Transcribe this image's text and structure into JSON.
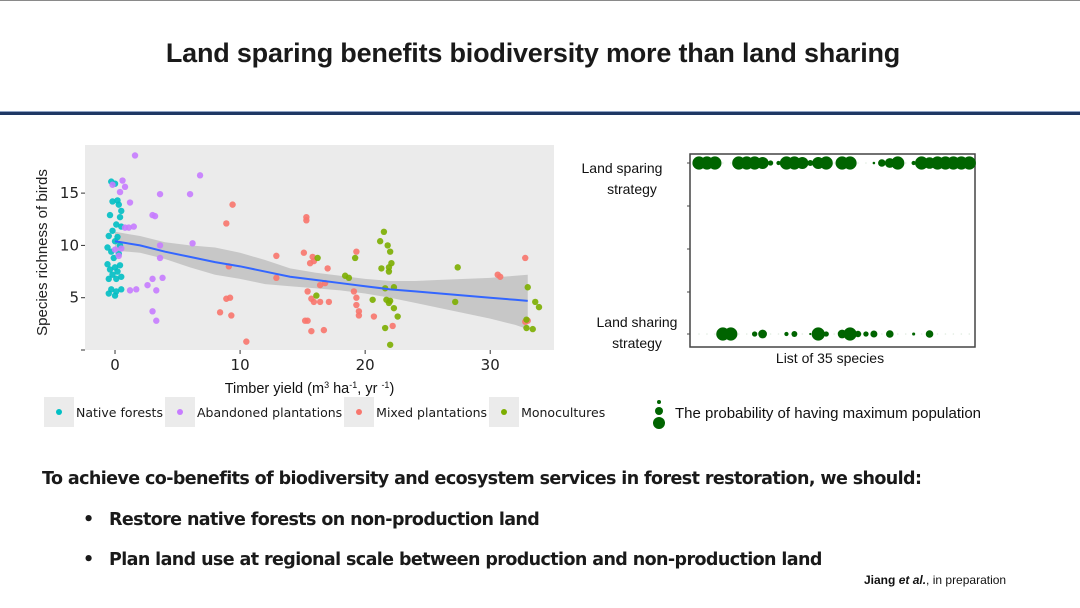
{
  "slide": {
    "title": "Land sparing benefits biodiversity more than land sharing",
    "conclusion": "To achieve co-benefits of biodiversity and ecosystem services in forest restoration, we should:",
    "bullets": [
      {
        "symbol": "•",
        "text": "Restore native forests on non-production land"
      },
      {
        "symbol": "•",
        "text": "Plan land use at regional scale between production and non-production land"
      }
    ],
    "citation": {
      "author": "Jiang",
      "etal": "et al.",
      "rest": ", in preparation"
    },
    "colors": {
      "title_rule": "#1f3864",
      "native": "#00BFC4",
      "abandoned": "#C77CFF",
      "mixed": "#F8766D",
      "mono": "#7CAE00",
      "trend": "#3366FF",
      "dot_green": "#006400"
    }
  },
  "chart_data": [
    {
      "type": "scatter",
      "title": "",
      "xlabel": "Timber yield (m³ ha⁻¹, yr ⁻¹)",
      "xlabel_parts": {
        "a": "Timber yield (m",
        "sup1": "3",
        "b": " ha",
        "sup2": "-1",
        "c": ", yr ",
        "sup3": "-1",
        "d": ")"
      },
      "ylabel": "Species richness of birds",
      "xlim": [
        -2.4,
        35.1
      ],
      "ylim": [
        0,
        19.6
      ],
      "xticks": [
        0,
        10,
        20,
        30
      ],
      "yticks": [
        0,
        5,
        10,
        15
      ],
      "ytick_labels": [
        "",
        "5",
        "10",
        "15"
      ],
      "grid": false,
      "background": "#EBEBEB",
      "legend_position": "bottom",
      "series": [
        {
          "name": "Native forests",
          "key": "native",
          "color": "#00BFC4",
          "points": [
            [
              -0.3,
              16.1
            ],
            [
              0,
              15.9
            ],
            [
              -0.2,
              14.2
            ],
            [
              0.2,
              14.3
            ],
            [
              0.3,
              13.9
            ],
            [
              0.5,
              13.3
            ],
            [
              -0.4,
              12.9
            ],
            [
              0.4,
              12.7
            ],
            [
              0.1,
              12.0
            ],
            [
              0.5,
              11.8
            ],
            [
              -0.5,
              10.9
            ],
            [
              0.2,
              10.8
            ],
            [
              0,
              10.4
            ],
            [
              -0.6,
              9.8
            ],
            [
              -0.3,
              9.4
            ],
            [
              0.3,
              9.2
            ],
            [
              -0.1,
              8.8
            ],
            [
              -0.6,
              8.2
            ],
            [
              0.4,
              8.1
            ],
            [
              0,
              7.9
            ],
            [
              -0.4,
              7.7
            ],
            [
              0.2,
              7.5
            ],
            [
              -0.2,
              7.2
            ],
            [
              0.5,
              7.0
            ],
            [
              -0.5,
              6.8
            ],
            [
              0.1,
              6.8
            ],
            [
              -0.3,
              5.8
            ],
            [
              0.5,
              5.8
            ],
            [
              0.1,
              5.6
            ],
            [
              -0.5,
              5.4
            ],
            [
              0,
              5.2
            ],
            [
              -0.2,
              11.4
            ],
            [
              0.4,
              10.0
            ]
          ]
        },
        {
          "name": "Abandoned plantations",
          "key": "abandoned",
          "color": "#C77CFF",
          "points": [
            [
              1.6,
              18.6
            ],
            [
              0.6,
              16.2
            ],
            [
              -0.2,
              15.8
            ],
            [
              0.8,
              15.6
            ],
            [
              0.4,
              15.1
            ],
            [
              1.2,
              14.1
            ],
            [
              3.6,
              14.9
            ],
            [
              6,
              14.9
            ],
            [
              6.8,
              16.7
            ],
            [
              3,
              12.9
            ],
            [
              3.2,
              12.8
            ],
            [
              0.8,
              11.7
            ],
            [
              1.1,
              11.7
            ],
            [
              1.5,
              11.8
            ],
            [
              0.5,
              9.7
            ],
            [
              0.3,
              9.0
            ],
            [
              3.6,
              10.0
            ],
            [
              3.6,
              8.8
            ],
            [
              6.2,
              10.2
            ],
            [
              2.6,
              6.2
            ],
            [
              3.3,
              5.7
            ],
            [
              1.2,
              5.7
            ],
            [
              1.7,
              5.8
            ],
            [
              3,
              6.8
            ],
            [
              3.8,
              6.9
            ],
            [
              3,
              3.7
            ],
            [
              3.3,
              2.8
            ],
            [
              0,
              9.6
            ]
          ]
        },
        {
          "name": "Mixed plantations",
          "key": "mixed",
          "color": "#F8766D",
          "points": [
            [
              9.4,
              13.9
            ],
            [
              8.9,
              12.1
            ],
            [
              9.1,
              8.0
            ],
            [
              8.9,
              4.9
            ],
            [
              9.2,
              5.0
            ],
            [
              8.4,
              3.6
            ],
            [
              9.3,
              3.3
            ],
            [
              10.5,
              0.8
            ],
            [
              12.9,
              9.0
            ],
            [
              12.9,
              6.9
            ],
            [
              15.3,
              12.7
            ],
            [
              15.3,
              12.4
            ],
            [
              15.1,
              9.3
            ],
            [
              15.8,
              8.9
            ],
            [
              15.6,
              8.3
            ],
            [
              15.9,
              8.5
            ],
            [
              17,
              7.8
            ],
            [
              15.4,
              5.6
            ],
            [
              15.7,
              4.9
            ],
            [
              15.9,
              4.6
            ],
            [
              16.4,
              4.6
            ],
            [
              17.1,
              4.6
            ],
            [
              15.2,
              2.8
            ],
            [
              15.4,
              2.8
            ],
            [
              15.7,
              1.8
            ],
            [
              16.7,
              1.9
            ],
            [
              16.4,
              6.2
            ],
            [
              16.8,
              6.4
            ],
            [
              19.3,
              9.4
            ],
            [
              19.1,
              5.6
            ],
            [
              19.3,
              5.0
            ],
            [
              19.3,
              4.3
            ],
            [
              19.5,
              3.7
            ],
            [
              19.5,
              3.3
            ],
            [
              20.7,
              3.2
            ],
            [
              22.2,
              2.3
            ],
            [
              30.6,
              7.2
            ],
            [
              30.8,
              7.0
            ],
            [
              32.8,
              8.8
            ],
            [
              32.8,
              2.7
            ],
            [
              33,
              2.8
            ]
          ]
        },
        {
          "name": "Monocultures",
          "key": "mono",
          "color": "#7CAE00",
          "points": [
            [
              16.2,
              8.8
            ],
            [
              16.1,
              5.2
            ],
            [
              18.4,
              7.1
            ],
            [
              18.7,
              6.9
            ],
            [
              19.2,
              8.8
            ],
            [
              20.6,
              4.8
            ],
            [
              21.2,
              10.4
            ],
            [
              21.5,
              11.3
            ],
            [
              21.8,
              10.0
            ],
            [
              22,
              9.4
            ],
            [
              21.3,
              7.8
            ],
            [
              21.9,
              7.9
            ],
            [
              22.1,
              8.3
            ],
            [
              21.9,
              7.5
            ],
            [
              21.6,
              5.9
            ],
            [
              22.3,
              6.0
            ],
            [
              21.7,
              4.8
            ],
            [
              21.9,
              4.5
            ],
            [
              22,
              4.7
            ],
            [
              22.3,
              4.0
            ],
            [
              22.6,
              3.2
            ],
            [
              21.6,
              2.1
            ],
            [
              22,
              0.5
            ],
            [
              27.2,
              4.6
            ],
            [
              27.4,
              7.9
            ],
            [
              33,
              6.0
            ],
            [
              33.6,
              4.6
            ],
            [
              33.9,
              4.1
            ],
            [
              32.9,
              2.9
            ],
            [
              32.9,
              2.1
            ],
            [
              33.4,
              2.0
            ]
          ]
        }
      ],
      "trend": {
        "name": "LOESS smooth",
        "color": "#3366FF",
        "x": [
          0,
          2,
          4,
          6,
          8,
          10,
          12,
          14,
          16,
          18,
          20,
          22,
          24,
          26,
          28,
          30,
          32,
          33
        ],
        "y": [
          10.4,
          10.0,
          9.4,
          8.9,
          8.4,
          8.0,
          7.5,
          7.0,
          6.7,
          6.4,
          6.1,
          5.8,
          5.6,
          5.4,
          5.2,
          5.0,
          4.8,
          4.7
        ],
        "ci_lower": [
          9.5,
          9.3,
          8.7,
          7.9,
          7.2,
          6.8,
          6.3,
          6.1,
          5.9,
          5.7,
          5.4,
          5.0,
          4.5,
          4.0,
          3.5,
          3.0,
          2.4,
          2.0
        ],
        "ci_upper": [
          11.3,
          10.9,
          10.3,
          10.0,
          9.8,
          9.3,
          8.6,
          7.8,
          7.4,
          7.1,
          6.8,
          6.6,
          6.6,
          6.7,
          6.8,
          6.9,
          7.1,
          7.2
        ]
      }
    },
    {
      "type": "scatter",
      "title": "",
      "xlabel": "List of 35 species",
      "ylabel": "",
      "categories_y": [
        "Land sparing strategy",
        "Land sharing strategy"
      ],
      "ylabels": [
        [
          "Land sparing",
          "strategy"
        ],
        [
          "Land sharing",
          "strategy"
        ]
      ],
      "n_species": 35,
      "size_legend": "The probability of having maximum population",
      "legend_position": "bottom",
      "color": "#006400",
      "series": [
        {
          "name": "Land sparing strategy",
          "probability": [
            1,
            1,
            1,
            0,
            0,
            1,
            1,
            1,
            0.9,
            0.3,
            0.2,
            1,
            1,
            0.9,
            0.35,
            0.9,
            1,
            0,
            1,
            1,
            0,
            0,
            0.05,
            0.5,
            0.7,
            1,
            0,
            0.2,
            1,
            0.85,
            1,
            1,
            1,
            1,
            1
          ]
        },
        {
          "name": "Land sharing strategy",
          "probability": [
            0,
            0,
            0,
            1,
            1,
            0,
            0,
            0.3,
            0.6,
            0,
            0,
            0.2,
            0.35,
            0,
            0.02,
            1,
            0.3,
            0,
            0.6,
            1,
            0.4,
            0.3,
            0.45,
            0,
            0.5,
            0,
            0,
            0.1,
            0,
            0.5,
            0,
            0,
            0,
            0,
            0
          ]
        }
      ]
    }
  ],
  "legend": {
    "items": [
      {
        "key": "native",
        "label": "Native forests",
        "color": "#00BFC4"
      },
      {
        "key": "abandoned",
        "label": "Abandoned plantations",
        "color": "#C77CFF"
      },
      {
        "key": "mixed",
        "label": "Mixed plantations",
        "color": "#F8766D"
      },
      {
        "key": "mono",
        "label": "Monocultures",
        "color": "#7CAE00"
      }
    ]
  }
}
